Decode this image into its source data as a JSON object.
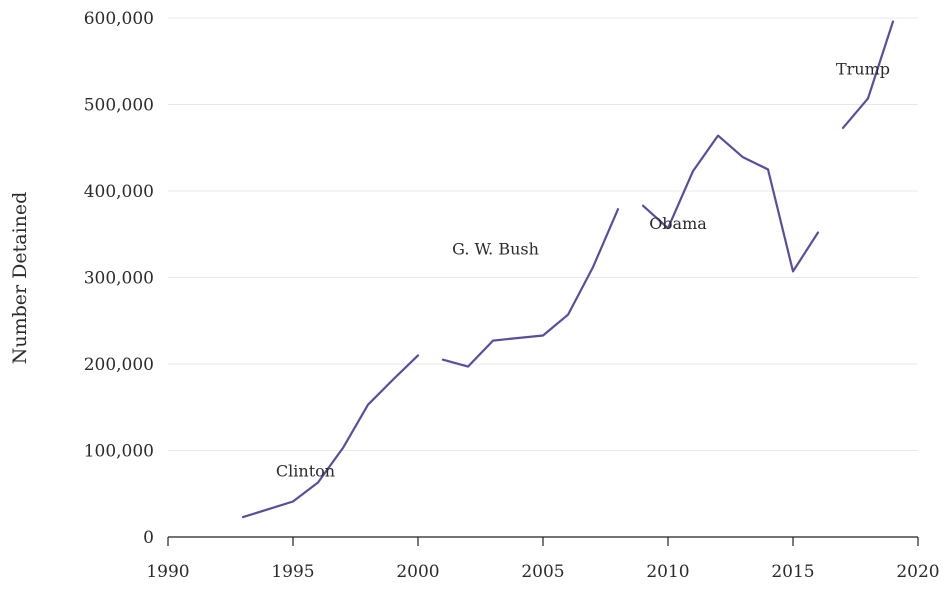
{
  "chart_data": {
    "type": "line",
    "title": "",
    "xlabel": "",
    "ylabel": "Number Detained",
    "xlim": [
      1990,
      2020
    ],
    "ylim": [
      0,
      600000
    ],
    "x_ticks": [
      1990,
      1995,
      2000,
      2005,
      2010,
      2015,
      2020
    ],
    "x_tick_labels": [
      "1990",
      "1995",
      "2000",
      "2005",
      "2010",
      "2015",
      "2020"
    ],
    "y_ticks": [
      0,
      100000,
      200000,
      300000,
      400000,
      500000,
      600000
    ],
    "y_tick_labels": [
      "0",
      "100,000",
      "200,000",
      "300,000",
      "400,000",
      "500,000",
      "600,000"
    ],
    "grid": true,
    "legend": "none",
    "line_color": "#5b4d9e",
    "series": [
      {
        "name": "Clinton",
        "x": [
          1993,
          1994,
          1995,
          1996,
          1997,
          1998,
          1999,
          2000
        ],
        "y": [
          23000,
          32000,
          41000,
          63000,
          103000,
          153000,
          182000,
          210000
        ]
      },
      {
        "name": "G. W. Bush",
        "x": [
          2001,
          2002,
          2003,
          2004,
          2005,
          2006,
          2007,
          2008
        ],
        "y": [
          205000,
          197000,
          227000,
          230000,
          233000,
          257000,
          312000,
          379000
        ]
      },
      {
        "name": "Obama",
        "x": [
          2009,
          2010,
          2011,
          2012,
          2013,
          2014,
          2015,
          2016
        ],
        "y": [
          383000,
          357000,
          423000,
          464000,
          439000,
          425000,
          307000,
          352000
        ]
      },
      {
        "name": "Trump",
        "x": [
          2017,
          2018,
          2019
        ],
        "y": [
          473000,
          507000,
          596000
        ]
      }
    ]
  }
}
